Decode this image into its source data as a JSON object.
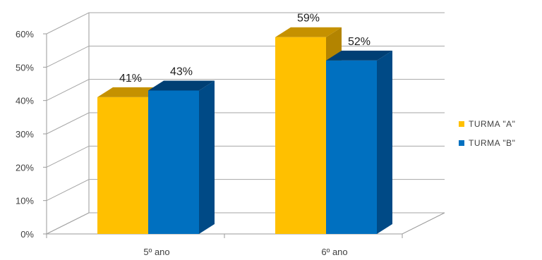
{
  "chart_data": {
    "type": "bar",
    "title": "",
    "xlabel": "",
    "ylabel": "",
    "categories": [
      "5º ano",
      "6º ano"
    ],
    "series": [
      {
        "name": "TURMA \"A\"",
        "values": [
          41,
          59
        ],
        "labels": [
          "41%",
          "59%"
        ],
        "color": "#FFC000",
        "top_color": "#C59100",
        "side_color": "#B38400"
      },
      {
        "name": "TURMA \"B\"",
        "values": [
          43,
          52
        ],
        "labels": [
          "43%",
          "52%"
        ],
        "color": "#0070C0",
        "top_color": "#003F74",
        "side_color": "#004A86"
      }
    ],
    "ylim": [
      0,
      60
    ],
    "yticks": [
      0,
      10,
      20,
      30,
      40,
      50,
      60
    ],
    "ytick_labels": [
      "0%",
      "10%",
      "20%",
      "30%",
      "40%",
      "50%",
      "60%"
    ],
    "grid": true,
    "legend": "right",
    "style": "3d-column"
  }
}
